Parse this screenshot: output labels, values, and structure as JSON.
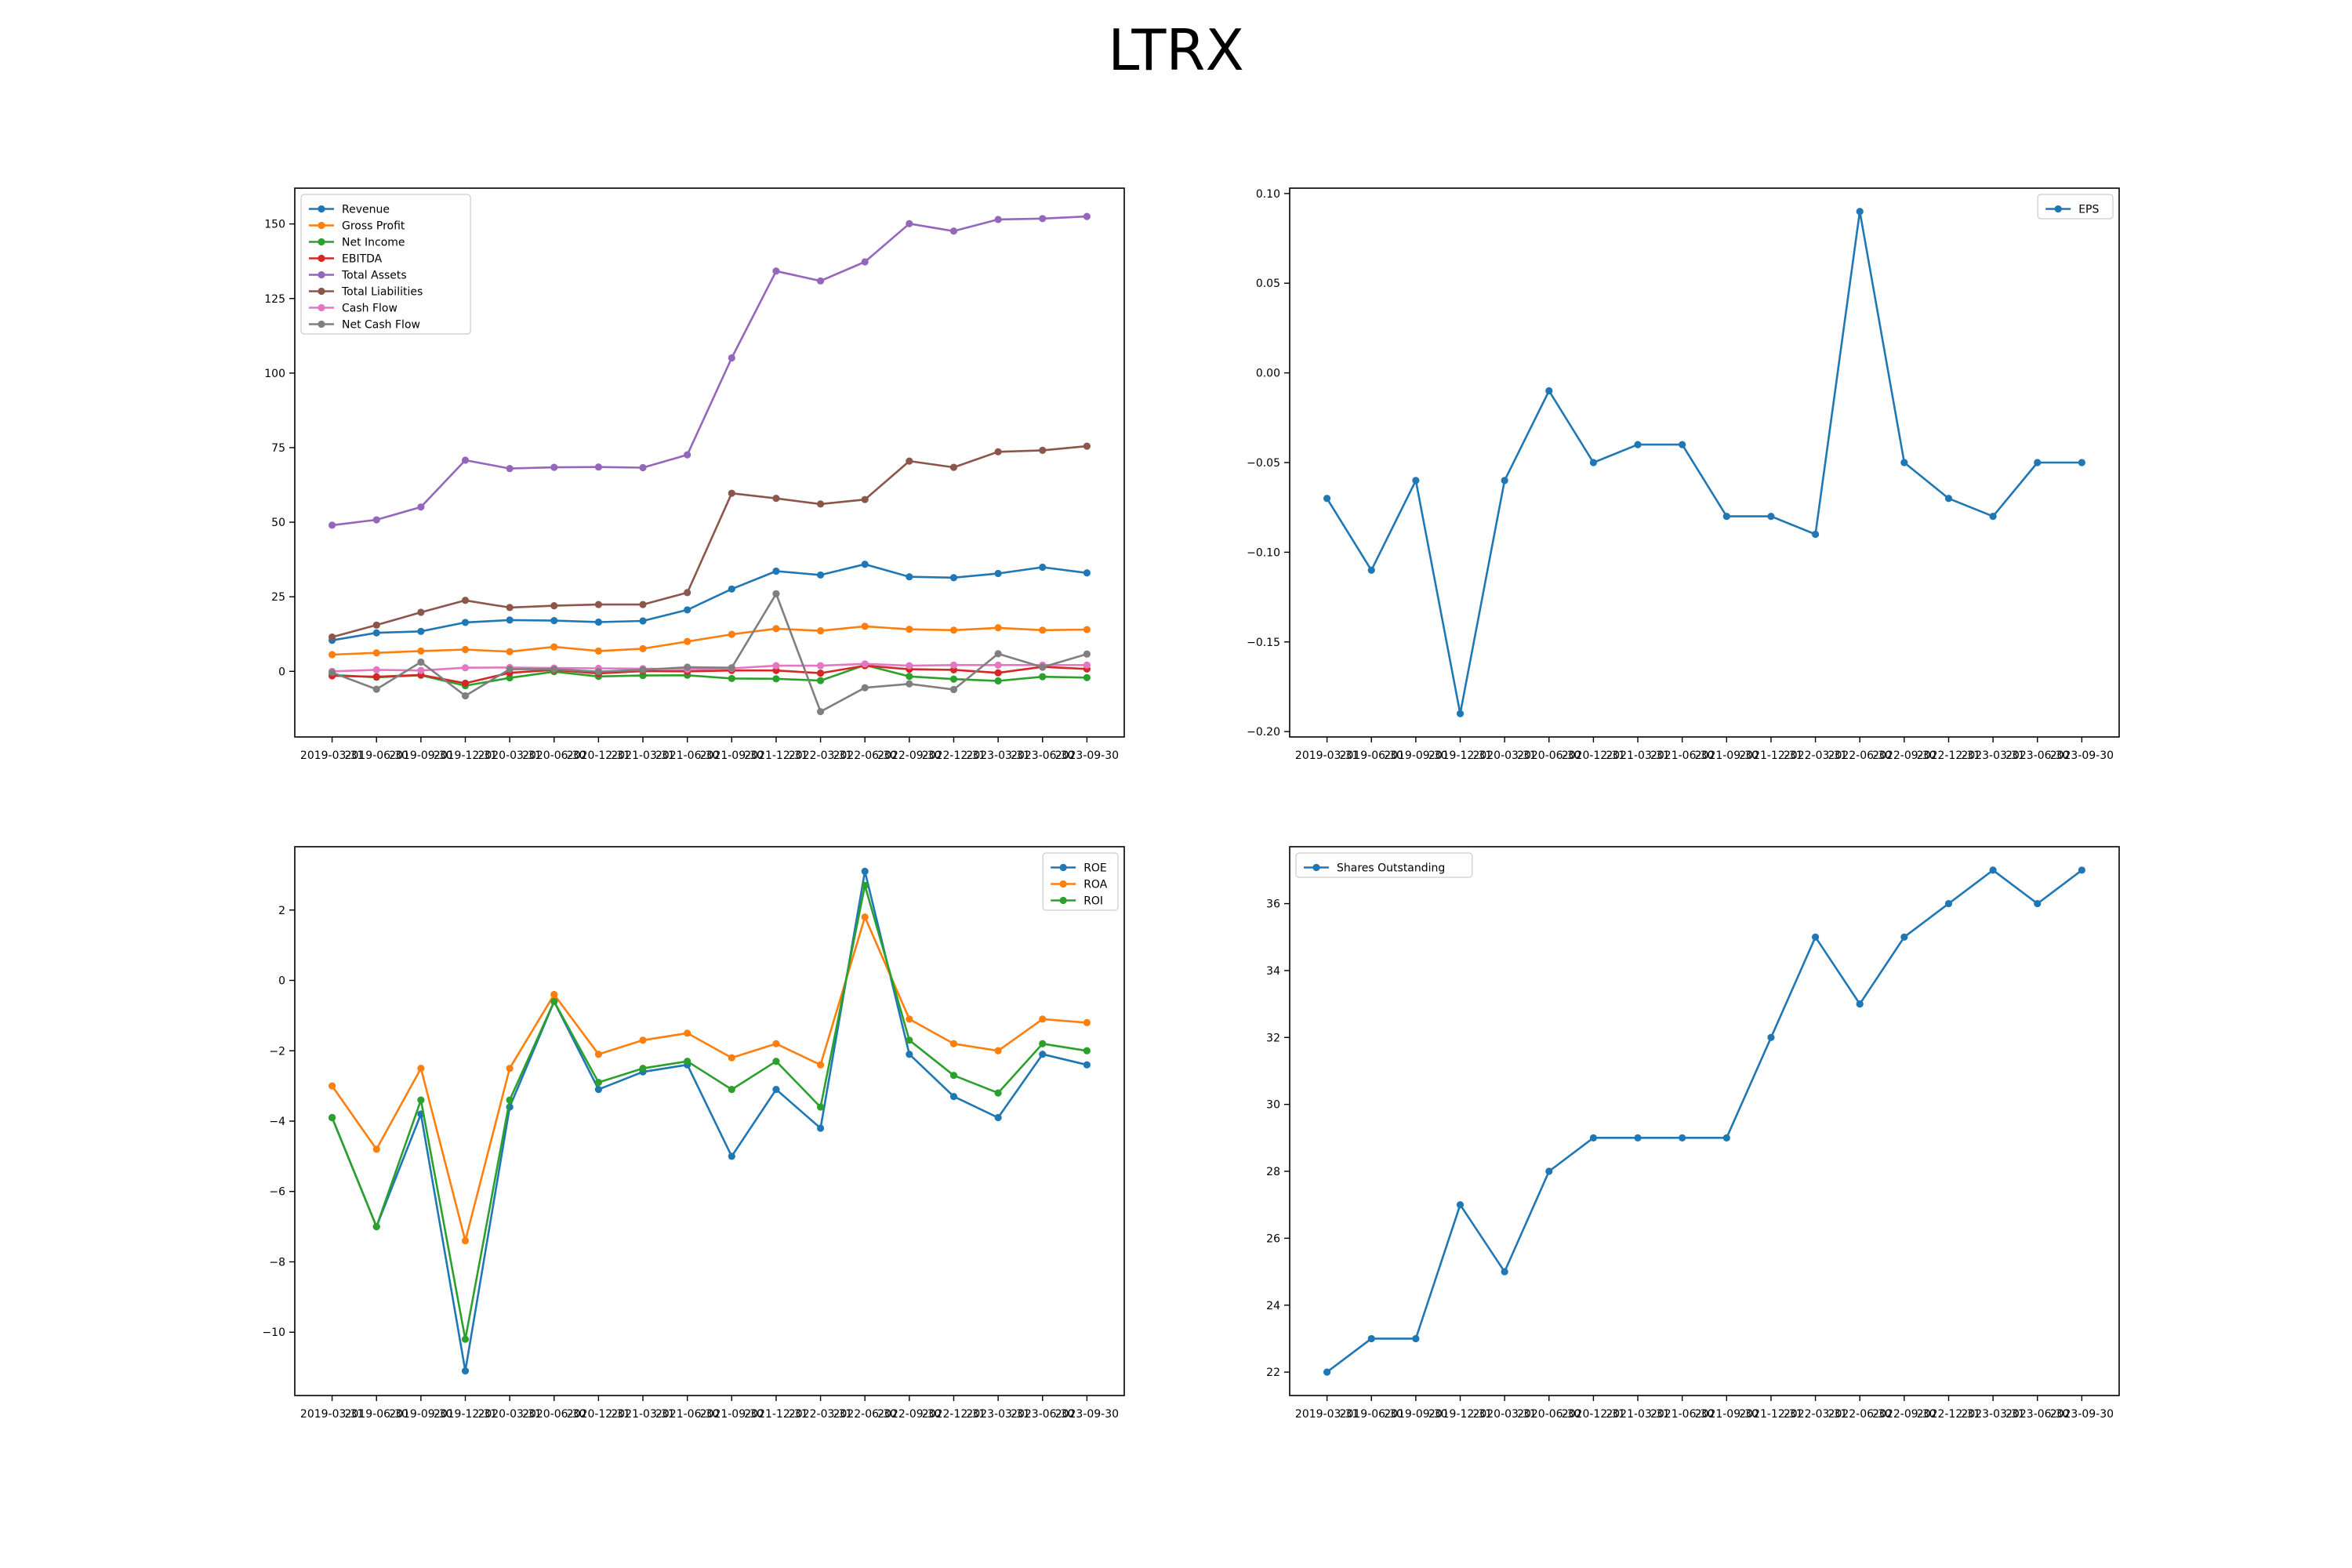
{
  "title": "LTRX",
  "dates": [
    "2019-03-31",
    "2019-06-30",
    "2019-09-30",
    "2019-12-31",
    "2020-03-31",
    "2020-06-30",
    "2020-12-31",
    "2021-03-31",
    "2021-06-30",
    "2021-09-30",
    "2021-12-31",
    "2022-03-31",
    "2022-06-30",
    "2022-09-30",
    "2022-12-31",
    "2023-03-31",
    "2023-06-30",
    "2023-09-30"
  ],
  "colors": [
    "#1f77b4",
    "#ff7f0e",
    "#2ca02c",
    "#d62728",
    "#9467bd",
    "#8c564b",
    "#e377c2",
    "#7f7f7f"
  ],
  "chart_data": [
    {
      "type": "line",
      "legend": "upper-left",
      "ylim": [
        -22,
        162
      ],
      "yticks": [
        0,
        25,
        50,
        75,
        100,
        125,
        150
      ],
      "series": [
        {
          "name": "Revenue",
          "values": [
            10.4,
            12.9,
            13.4,
            16.4,
            17.2,
            17.0,
            16.5,
            16.9,
            20.6,
            27.6,
            33.6,
            32.3,
            35.9,
            31.7,
            31.4,
            32.8,
            34.9,
            33.0
          ]
        },
        {
          "name": "Gross Profit",
          "values": [
            5.6,
            6.2,
            6.8,
            7.3,
            6.6,
            8.2,
            6.8,
            7.6,
            10.0,
            12.4,
            14.3,
            13.6,
            15.1,
            14.1,
            13.8,
            14.6,
            13.8,
            14.0
          ]
        },
        {
          "name": "Net Income",
          "values": [
            -1.2,
            -2.0,
            -1.3,
            -4.8,
            -2.2,
            -0.1,
            -1.7,
            -1.4,
            -1.3,
            -2.4,
            -2.5,
            -3.1,
            2.1,
            -1.7,
            -2.6,
            -3.2,
            -1.8,
            -2.1
          ]
        },
        {
          "name": "EBITDA",
          "values": [
            -1.5,
            -1.8,
            -1.2,
            -4.0,
            -0.5,
            0.5,
            -0.7,
            0.1,
            0.0,
            0.3,
            0.3,
            -0.6,
            1.9,
            0.7,
            0.5,
            -0.5,
            1.5,
            0.8
          ]
        },
        {
          "name": "Total Assets",
          "values": [
            49.0,
            50.8,
            55.1,
            70.8,
            68.0,
            68.4,
            68.5,
            68.3,
            72.6,
            105.1,
            134.2,
            130.9,
            137.3,
            150.1,
            147.6,
            151.5,
            151.8,
            152.5
          ]
        },
        {
          "name": "Total Liabilities",
          "values": [
            11.5,
            15.5,
            19.8,
            23.8,
            21.4,
            22.0,
            22.4,
            22.4,
            26.4,
            59.7,
            58.0,
            56.1,
            57.6,
            70.5,
            68.4,
            73.6,
            74.1,
            75.5
          ]
        },
        {
          "name": "Cash Flow",
          "values": [
            0.0,
            0.5,
            0.3,
            1.2,
            1.3,
            1.1,
            1.0,
            0.9,
            0.7,
            1.0,
            1.9,
            1.9,
            2.5,
            1.9,
            2.1,
            2.1,
            2.1,
            2.1
          ]
        },
        {
          "name": "Net Cash Flow",
          "values": [
            -0.4,
            -6.0,
            3.1,
            -8.2,
            0.7,
            0.7,
            -0.1,
            0.5,
            1.4,
            1.2,
            26.0,
            -13.5,
            -5.5,
            -4.2,
            -6.1,
            5.9,
            1.4,
            5.8
          ]
        }
      ]
    },
    {
      "type": "line",
      "legend": "upper-right",
      "ylim": [
        -0.203,
        0.103
      ],
      "yticks": [
        -0.2,
        -0.15,
        -0.1,
        -0.05,
        0.0,
        0.05,
        0.1
      ],
      "ytick_labels": [
        "−0.20",
        "−0.15",
        "−0.10",
        "−0.05",
        "0.00",
        "0.05",
        "0.10"
      ],
      "series": [
        {
          "name": "EPS",
          "values": [
            -0.07,
            -0.11,
            -0.06,
            -0.19,
            -0.06,
            -0.01,
            -0.05,
            -0.04,
            -0.04,
            -0.08,
            -0.08,
            -0.09,
            0.09,
            -0.05,
            -0.07,
            -0.08,
            -0.05,
            -0.05
          ]
        }
      ]
    },
    {
      "type": "line",
      "legend": "upper-right",
      "ylim": [
        -11.8,
        3.8
      ],
      "yticks": [
        -10,
        -8,
        -6,
        -4,
        -2,
        0,
        2
      ],
      "ytick_labels": [
        "−10",
        "−8",
        "−6",
        "−4",
        "−2",
        "0",
        "2"
      ],
      "series": [
        {
          "name": "ROE",
          "values": [
            -3.9,
            -7.0,
            -3.8,
            -11.1,
            -3.6,
            -0.6,
            -3.1,
            -2.6,
            -2.4,
            -5.0,
            -3.1,
            -4.2,
            3.1,
            -2.1,
            -3.3,
            -3.9,
            -2.1,
            -2.4
          ]
        },
        {
          "name": "ROA",
          "values": [
            -3.0,
            -4.8,
            -2.5,
            -7.4,
            -2.5,
            -0.4,
            -2.1,
            -1.7,
            -1.5,
            -2.2,
            -1.8,
            -2.4,
            1.8,
            -1.1,
            -1.8,
            -2.0,
            -1.1,
            -1.2
          ]
        },
        {
          "name": "ROI",
          "values": [
            -3.9,
            -7.0,
            -3.4,
            -10.2,
            -3.4,
            -0.6,
            -2.9,
            -2.5,
            -2.3,
            -3.1,
            -2.3,
            -3.6,
            2.7,
            -1.7,
            -2.7,
            -3.2,
            -1.8,
            -2.0
          ]
        }
      ]
    },
    {
      "type": "line",
      "legend": "upper-left",
      "ylim": [
        21.3,
        37.7
      ],
      "yticks": [
        22,
        24,
        26,
        28,
        30,
        32,
        34,
        36
      ],
      "series": [
        {
          "name": "Shares Outstanding",
          "values": [
            22,
            23,
            23,
            27,
            25,
            28,
            29,
            29,
            29,
            29,
            32,
            35,
            33,
            35,
            36,
            37,
            36,
            37
          ]
        }
      ]
    }
  ]
}
